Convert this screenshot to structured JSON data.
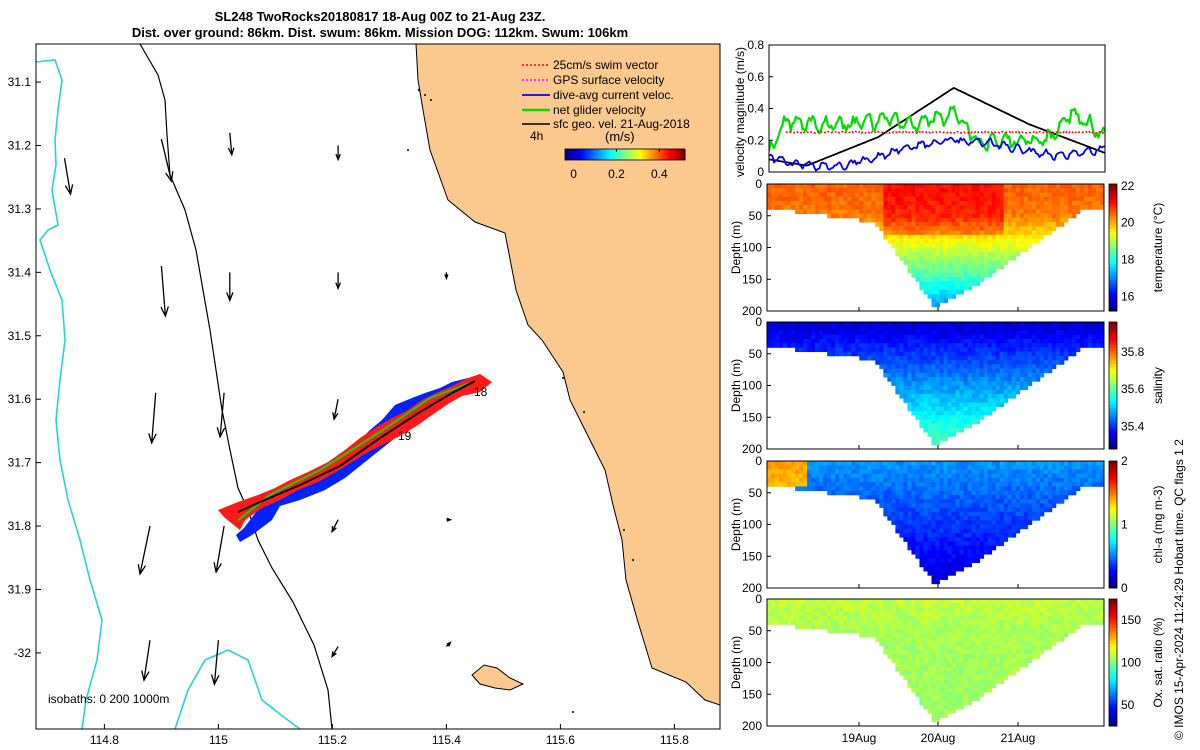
{
  "header": {
    "title_line1": "SL248 TwoRocks20180817 18-Aug 00Z to 21-Aug 23Z.",
    "title_line2": "Dist. over ground: 86km. Dist. swum: 86km. Mission DOG: 112km. Swum: 106km"
  },
  "chart_data": [
    {
      "type": "map",
      "name": "glider track map",
      "xlim": [
        114.68,
        115.88
      ],
      "ylim": [
        -32.12,
        -31.04
      ],
      "x_ticks": [
        114.8,
        115,
        115.2,
        115.4,
        115.6,
        115.8
      ],
      "x_tick_labels": [
        "114.8",
        "115",
        "115.2",
        "115.4",
        "115.6",
        "115.8"
      ],
      "y_ticks": [
        -31.1,
        -31.2,
        -31.3,
        -31.4,
        -31.5,
        -31.6,
        -31.7,
        -31.8,
        -31.9,
        -32.0
      ],
      "y_tick_labels": [
        "31.1",
        "31.2",
        "31.3",
        "31.4",
        "31.5",
        "31.6",
        "31.7",
        "31.8",
        "31.9",
        "-32"
      ],
      "legend": [
        {
          "label": "25cm/s swim vector",
          "color": "#ff0000",
          "style": "dotted"
        },
        {
          "label": "GPS surface velocity",
          "color": "#ff00ff",
          "style": "dotted"
        },
        {
          "label": "dive-avg current veloc.",
          "color": "#0000ff",
          "style": "solid"
        },
        {
          "label": "net glider velocity",
          "color": "#00dd00",
          "style": "solid"
        },
        {
          "label": "sfc geo. vel. 21-Aug-2018",
          "color": "#000000",
          "style": "solid"
        }
      ],
      "colorbar": {
        "title": "(m/s)",
        "ticks": [
          "0",
          "0.2",
          "0.4"
        ],
        "range": [
          -0.04,
          0.52
        ],
        "label_4h": "4h"
      },
      "isobaths_label": "isobaths: 0   200  1000m",
      "track_start": {
        "lon": 115.05,
        "lat": -31.77
      },
      "track_end": {
        "lon": 115.44,
        "lat": -31.58
      },
      "day_labels": [
        {
          "text": "18",
          "lon": 115.45,
          "lat": -31.595
        },
        {
          "text": "19",
          "lon": 115.365,
          "lat": -31.665
        }
      ],
      "current_vectors": [
        {
          "lon": 114.73,
          "lat": -31.22,
          "u": 0.03,
          "v": -0.18
        },
        {
          "lon": 114.9,
          "lat": -31.19,
          "u": 0.05,
          "v": -0.21
        },
        {
          "lon": 115.02,
          "lat": -31.18,
          "u": 0.01,
          "v": -0.11
        },
        {
          "lon": 115.21,
          "lat": -31.2,
          "u": 0.0,
          "v": -0.07
        },
        {
          "lon": 114.9,
          "lat": -31.39,
          "u": 0.02,
          "v": -0.25
        },
        {
          "lon": 115.02,
          "lat": -31.4,
          "u": 0.0,
          "v": -0.14
        },
        {
          "lon": 115.21,
          "lat": -31.4,
          "u": 0.0,
          "v": -0.08
        },
        {
          "lon": 115.4,
          "lat": -31.4,
          "u": 0.0,
          "v": -0.03
        },
        {
          "lon": 114.89,
          "lat": -31.59,
          "u": -0.02,
          "v": -0.25
        },
        {
          "lon": 115.01,
          "lat": -31.59,
          "u": -0.02,
          "v": -0.22
        },
        {
          "lon": 115.21,
          "lat": -31.6,
          "u": -0.02,
          "v": -0.1
        },
        {
          "lon": 114.88,
          "lat": -31.8,
          "u": -0.05,
          "v": -0.24
        },
        {
          "lon": 115.01,
          "lat": -31.8,
          "u": -0.04,
          "v": -0.23
        },
        {
          "lon": 115.21,
          "lat": -31.79,
          "u": -0.03,
          "v": -0.06
        },
        {
          "lon": 115.4,
          "lat": -31.79,
          "u": 0.02,
          "v": 0.0
        },
        {
          "lon": 114.88,
          "lat": -31.98,
          "u": -0.03,
          "v": -0.2
        },
        {
          "lon": 115.0,
          "lat": -31.98,
          "u": -0.02,
          "v": -0.22
        },
        {
          "lon": 115.21,
          "lat": -31.99,
          "u": -0.03,
          "v": -0.05
        },
        {
          "lon": 115.4,
          "lat": -31.99,
          "u": 0.02,
          "v": 0.02
        }
      ]
    },
    {
      "type": "line",
      "name": "velocity magnitude",
      "ylabel": "velocity magnitude (m/s)",
      "ylim": [
        0,
        0.8
      ],
      "y_ticks": [
        "0",
        "0.2",
        "0.4",
        "0.6",
        "0.8"
      ],
      "xlim_days": [
        0,
        4
      ],
      "series": [
        {
          "name": "sfc geo. vel.",
          "color": "#000000",
          "x": [
            0,
            0.45,
            1.3,
            2.2,
            3.1,
            4.0
          ],
          "values": [
            0.08,
            0.04,
            0.22,
            0.53,
            0.3,
            0.12
          ]
        },
        {
          "name": "net glider velocity",
          "color": "#00dd00",
          "x": [
            0,
            0.2,
            0.6,
            1.0,
            1.4,
            1.8,
            2.2,
            2.5,
            2.9,
            3.3,
            3.6,
            3.8,
            4.0
          ],
          "values": [
            0.12,
            0.32,
            0.3,
            0.3,
            0.34,
            0.3,
            0.38,
            0.17,
            0.2,
            0.2,
            0.38,
            0.3,
            0.24
          ]
        },
        {
          "name": "dive-avg current veloc.",
          "color": "#0000ff",
          "x": [
            0,
            0.3,
            0.8,
            1.3,
            1.7,
            2.2,
            2.6,
            3.0,
            3.4,
            3.8,
            4.0
          ],
          "values": [
            0.1,
            0.05,
            0.03,
            0.1,
            0.16,
            0.2,
            0.19,
            0.14,
            0.1,
            0.13,
            0.15
          ]
        },
        {
          "name": "25cm/s swim vector",
          "color": "#ff0000",
          "x": [
            0.2,
            4.0
          ],
          "values": [
            0.25,
            0.25
          ]
        }
      ]
    },
    {
      "type": "heatmap",
      "name": "temperature section",
      "ylabel": "Depth (m)",
      "y_ticks": [
        "0",
        "50",
        "100",
        "150",
        "200"
      ],
      "colorbar_label": "temperature (°C)",
      "colorbar_ticks": [
        "16",
        "18",
        "20",
        "22"
      ],
      "crange": [
        15.2,
        22.1
      ],
      "surface": 20.6,
      "core": 20.4,
      "bottom": 17.0
    },
    {
      "type": "heatmap",
      "name": "salinity section",
      "ylabel": "Depth (m)",
      "y_ticks": [
        "0",
        "50",
        "100",
        "150",
        "200"
      ],
      "colorbar_label": "salinity",
      "colorbar_ticks": [
        "35.4",
        "35.6",
        "35.8"
      ],
      "crange": [
        35.28,
        35.96
      ],
      "surface": 35.33,
      "core": 35.4,
      "bottom": 35.6
    },
    {
      "type": "heatmap",
      "name": "chlorophyll section",
      "ylabel": "Depth (m)",
      "y_ticks": [
        "0",
        "50",
        "100",
        "150",
        "200"
      ],
      "colorbar_label": "chl-a (mg m-3)",
      "colorbar_ticks": [
        "0",
        "1",
        "2"
      ],
      "crange": [
        0,
        2
      ],
      "surface": 0.55,
      "core": 0.45,
      "bottom": 0.15
    },
    {
      "type": "heatmap",
      "name": "oxygen saturation section",
      "ylabel": "Depth (m)",
      "y_ticks": [
        "0",
        "50",
        "100",
        "150",
        "200"
      ],
      "colorbar_label": "Ox. sat. ratio (%)",
      "colorbar_ticks": [
        "50",
        "100",
        "150"
      ],
      "crange": [
        25,
        175
      ],
      "surface": 110,
      "core": 106,
      "bottom": 104
    }
  ],
  "x_axis_dates": [
    "19Aug",
    "20Aug",
    "21Aug"
  ],
  "footer": {
    "side_text": "© IMOS 15-Apr-2024 11:24:29 Hobart time. QC flags 1  2"
  }
}
